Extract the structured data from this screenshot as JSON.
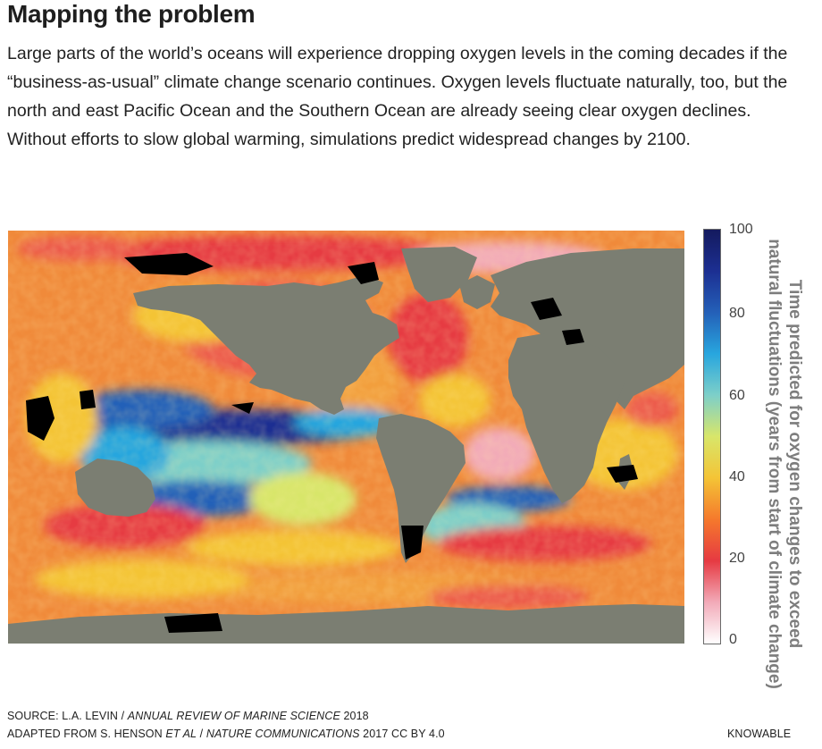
{
  "header": {
    "title": "Mapping the problem",
    "intro": "Large parts of the world’s oceans will experience dropping oxygen levels in the coming decades if the “business-as-usual” climate change scenario continues. Oxygen levels fluctuate naturally, too, but the north and east Pacific Ocean and the Southern Ocean are already seeing clear oxygen declines. Without efforts to slow global warming, simulations predict widespread changes by 2100."
  },
  "legend": {
    "title_line1": "Time predicted for oxygen changes to exceed",
    "title_line2": "natural fluctuations (years from start of climate change)",
    "ticks": [
      "100",
      "80",
      "60",
      "40",
      "20",
      "0"
    ],
    "min_value": 0,
    "max_value": 100,
    "colors": {
      "0": "#ffffff",
      "10": "#f2aab8",
      "20": "#e63a42",
      "30": "#f5792c",
      "40": "#f4c436",
      "50": "#d8e66a",
      "60": "#7dcfc9",
      "70": "#28a6de",
      "80": "#2460b8",
      "90": "#1c2f92",
      "100": "#141a5e"
    }
  },
  "map": {
    "land_color": "#7b7e72",
    "no_data_color": "#000000"
  },
  "footer": {
    "source_prefix": "SOURCE: L.A. LEVIN / ",
    "source_journal": "ANNUAL REVIEW OF MARINE SCIENCE",
    "source_year": " 2018",
    "adapted_prefix": "ADAPTED FROM S. HENSON ",
    "adapted_etal": "ET AL",
    "adapted_sep": " / ",
    "adapted_journal": "NATURE COMMUNICATIONS",
    "adapted_suffix": " 2017 CC BY 4.0",
    "credit": "KNOWABLE"
  }
}
